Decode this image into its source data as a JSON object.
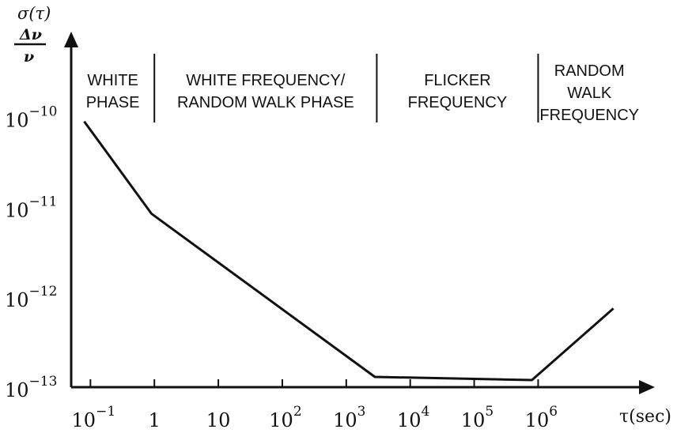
{
  "chart_data": {
    "type": "line",
    "title": "",
    "ylabel_top": "σ(τ)",
    "ylabel_num": "Δν",
    "ylabel_den": "ν",
    "xlabel": "τ(sec)",
    "x_scale": "log",
    "y_scale": "log",
    "xlim": [
      0.05,
      40000000
    ],
    "ylim": [
      1e-13,
      4e-10
    ],
    "grid": false,
    "x_ticks": [
      {
        "value": 0.1,
        "base": "10",
        "exp": "−1"
      },
      {
        "value": 1,
        "base": "1",
        "exp": ""
      },
      {
        "value": 10,
        "base": "10",
        "exp": ""
      },
      {
        "value": 100,
        "base": "10",
        "exp": "2"
      },
      {
        "value": 1000,
        "base": "10",
        "exp": "3"
      },
      {
        "value": 10000,
        "base": "10",
        "exp": "4"
      },
      {
        "value": 100000,
        "base": "10",
        "exp": "5"
      },
      {
        "value": 1000000,
        "base": "10",
        "exp": "6"
      }
    ],
    "y_ticks": [
      {
        "value": 1e-10,
        "base": "10",
        "exp": "−10"
      },
      {
        "value": 1e-11,
        "base": "10",
        "exp": "−11"
      },
      {
        "value": 1e-12,
        "base": "10",
        "exp": "−12"
      },
      {
        "value": 1e-13,
        "base": "10",
        "exp": "−13"
      }
    ],
    "regions": [
      {
        "lines": [
          "WHITE",
          "PHASE"
        ],
        "x_from": 0.05,
        "x_to": 1
      },
      {
        "lines": [
          "WHITE FREQUENCY/",
          "RANDOM WALK PHASE"
        ],
        "x_from": 1,
        "x_to": 3000
      },
      {
        "lines": [
          "FLICKER",
          "FREQUENCY"
        ],
        "x_from": 3000,
        "x_to": 1000000
      },
      {
        "lines": [
          "RANDOM",
          "WALK",
          "FREQUENCY"
        ],
        "x_from": 1000000,
        "x_to": 40000000
      }
    ],
    "dividers": [
      1,
      3000,
      1000000
    ],
    "series": [
      {
        "x": [
          0.08,
          0.9,
          2800,
          800000,
          15000000
        ],
        "y": [
          9e-11,
          8.5e-12,
          1.3e-13,
          1.2e-13,
          7.5e-13
        ]
      }
    ]
  }
}
